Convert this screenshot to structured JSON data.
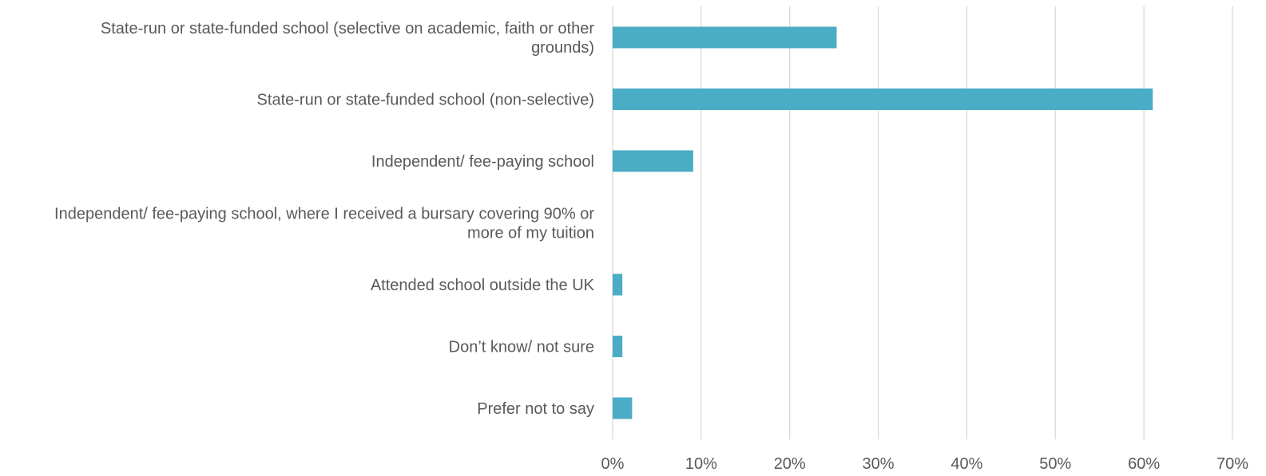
{
  "chart_data": {
    "type": "bar",
    "orientation": "horizontal",
    "categories": [
      "State-run or state-funded school (selective on academic, faith or other grounds)",
      "State-run or state-funded school (non-selective)",
      "Independent/ fee-paying school",
      "Independent/ fee-paying school, where I received a bursary covering 90% or more of my tuition",
      "Attended school outside the UK",
      "Don’t know/ not sure",
      "Prefer not to say"
    ],
    "category_label_lines": [
      [
        "State-run or state-funded school (selective on academic, faith or other",
        "grounds)"
      ],
      [
        "State-run or state-funded school (non-selective)"
      ],
      [
        "Independent/ fee-paying school"
      ],
      [
        "Independent/ fee-paying school, where I received a bursary covering 90% or",
        "more of my tuition"
      ],
      [
        "Attended school outside the UK"
      ],
      [
        "Don’t know/ not sure"
      ],
      [
        "Prefer not to say"
      ]
    ],
    "values": [
      25.3,
      61.0,
      9.1,
      0,
      1.1,
      1.1,
      2.2
    ],
    "xlim": [
      0,
      70
    ],
    "x_ticks": [
      0,
      10,
      20,
      30,
      40,
      50,
      60,
      70
    ],
    "x_tick_labels": [
      "0%",
      "10%",
      "20%",
      "30%",
      "40%",
      "50%",
      "60%",
      "70%"
    ],
    "grid": true,
    "legend": "none",
    "colors": {
      "bar": "#4BACC6",
      "grid": "#D9D9D9",
      "text": "#595959"
    }
  }
}
